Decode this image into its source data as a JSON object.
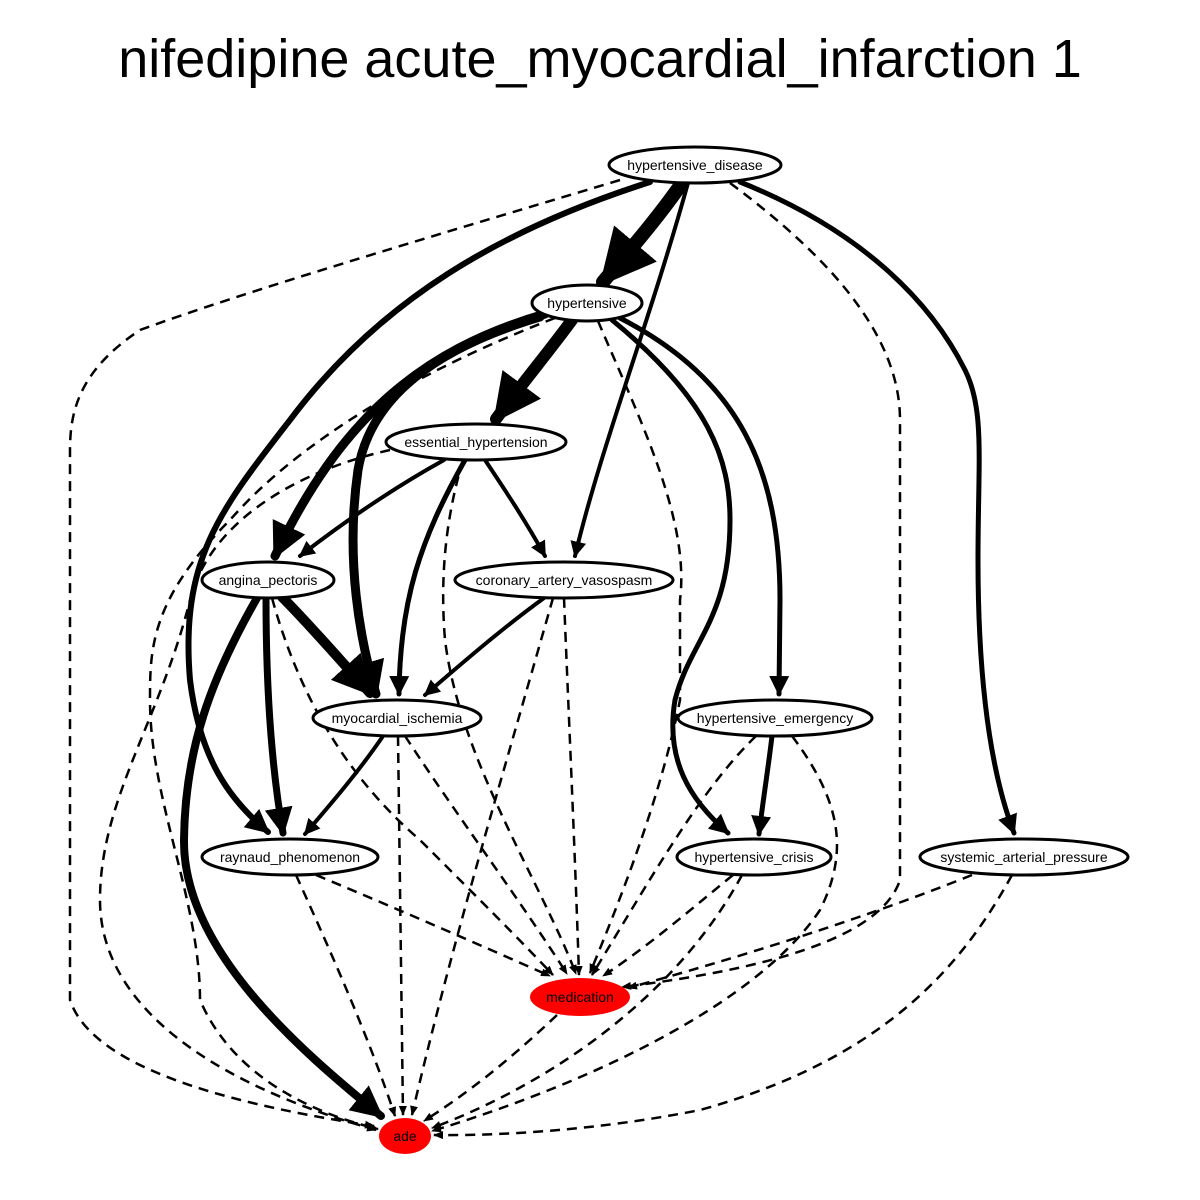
{
  "title": "nifedipine acute_myocardial_infarction 1",
  "colors": {
    "highlight": "#ff0000",
    "node_fill": "#ffffff",
    "stroke": "#000000"
  },
  "nodes": [
    {
      "id": "hypertensive_disease",
      "label": "hypertensive_disease",
      "highlight": false
    },
    {
      "id": "hypertensive",
      "label": "hypertensive",
      "highlight": false
    },
    {
      "id": "essential_hypertension",
      "label": "essential_hypertension",
      "highlight": false
    },
    {
      "id": "angina_pectoris",
      "label": "angina_pectoris",
      "highlight": false
    },
    {
      "id": "coronary_artery_vasospasm",
      "label": "coronary_artery_vasospasm",
      "highlight": false
    },
    {
      "id": "myocardial_ischemia",
      "label": "myocardial_ischemia",
      "highlight": false
    },
    {
      "id": "hypertensive_emergency",
      "label": "hypertensive_emergency",
      "highlight": false
    },
    {
      "id": "raynaud_phenomenon",
      "label": "raynaud_phenomenon",
      "highlight": false
    },
    {
      "id": "hypertensive_crisis",
      "label": "hypertensive_crisis",
      "highlight": false
    },
    {
      "id": "systemic_arterial_pressure",
      "label": "systemic_arterial_pressure",
      "highlight": false
    },
    {
      "id": "medication",
      "label": "medication",
      "highlight": true
    },
    {
      "id": "ade",
      "label": "ade",
      "highlight": true
    }
  ],
  "edges": [
    {
      "from": "hypertensive_disease",
      "to": "hypertensive",
      "style": "solid",
      "weight": 14
    },
    {
      "from": "hypertensive_disease",
      "to": "coronary_artery_vasospasm",
      "style": "solid",
      "weight": 4
    },
    {
      "from": "hypertensive_disease",
      "to": "raynaud_phenomenon",
      "style": "solid",
      "weight": 6
    },
    {
      "from": "hypertensive_disease",
      "to": "systemic_arterial_pressure",
      "style": "solid",
      "weight": 5
    },
    {
      "from": "hypertensive_disease",
      "to": "ade",
      "style": "dashed",
      "weight": 2.5
    },
    {
      "from": "hypertensive_disease",
      "to": "medication",
      "style": "dashed",
      "weight": 2.5
    },
    {
      "from": "hypertensive",
      "to": "essential_hypertension",
      "style": "solid",
      "weight": 12
    },
    {
      "from": "hypertensive",
      "to": "angina_pectoris",
      "style": "solid",
      "weight": 9
    },
    {
      "from": "hypertensive",
      "to": "myocardial_ischemia",
      "style": "solid",
      "weight": 9
    },
    {
      "from": "hypertensive",
      "to": "hypertensive_emergency",
      "style": "solid",
      "weight": 5
    },
    {
      "from": "hypertensive",
      "to": "hypertensive_crisis",
      "style": "solid",
      "weight": 5
    },
    {
      "from": "hypertensive",
      "to": "medication",
      "style": "dashed",
      "weight": 2.5
    },
    {
      "from": "hypertensive",
      "to": "ade",
      "style": "dashed",
      "weight": 2.5
    },
    {
      "from": "essential_hypertension",
      "to": "angina_pectoris",
      "style": "solid",
      "weight": 4
    },
    {
      "from": "essential_hypertension",
      "to": "coronary_artery_vasospasm",
      "style": "solid",
      "weight": 4
    },
    {
      "from": "essential_hypertension",
      "to": "myocardial_ischemia",
      "style": "solid",
      "weight": 5
    },
    {
      "from": "essential_hypertension",
      "to": "medication",
      "style": "dashed",
      "weight": 2.5
    },
    {
      "from": "essential_hypertension",
      "to": "ade",
      "style": "dashed",
      "weight": 2.5
    },
    {
      "from": "angina_pectoris",
      "to": "myocardial_ischemia",
      "style": "solid",
      "weight": 10
    },
    {
      "from": "angina_pectoris",
      "to": "raynaud_phenomenon",
      "style": "solid",
      "weight": 7
    },
    {
      "from": "angina_pectoris",
      "to": "ade",
      "style": "solid",
      "weight": 8
    },
    {
      "from": "angina_pectoris",
      "to": "medication",
      "style": "dashed",
      "weight": 2.5
    },
    {
      "from": "coronary_artery_vasospasm",
      "to": "myocardial_ischemia",
      "style": "solid",
      "weight": 4
    },
    {
      "from": "coronary_artery_vasospasm",
      "to": "medication",
      "style": "dashed",
      "weight": 2.5
    },
    {
      "from": "coronary_artery_vasospasm",
      "to": "ade",
      "style": "dashed",
      "weight": 2.5
    },
    {
      "from": "myocardial_ischemia",
      "to": "raynaud_phenomenon",
      "style": "solid",
      "weight": 4
    },
    {
      "from": "myocardial_ischemia",
      "to": "medication",
      "style": "dashed",
      "weight": 2.5
    },
    {
      "from": "myocardial_ischemia",
      "to": "ade",
      "style": "dashed",
      "weight": 2.5
    },
    {
      "from": "hypertensive_emergency",
      "to": "hypertensive_crisis",
      "style": "solid",
      "weight": 5
    },
    {
      "from": "hypertensive_emergency",
      "to": "medication",
      "style": "dashed",
      "weight": 2.5
    },
    {
      "from": "hypertensive_emergency",
      "to": "ade",
      "style": "dashed",
      "weight": 2.5
    },
    {
      "from": "raynaud_phenomenon",
      "to": "medication",
      "style": "dashed",
      "weight": 2.5
    },
    {
      "from": "raynaud_phenomenon",
      "to": "ade",
      "style": "dashed",
      "weight": 2.5
    },
    {
      "from": "hypertensive_crisis",
      "to": "medication",
      "style": "dashed",
      "weight": 2.5
    },
    {
      "from": "hypertensive_crisis",
      "to": "ade",
      "style": "dashed",
      "weight": 2.5
    },
    {
      "from": "systemic_arterial_pressure",
      "to": "medication",
      "style": "dashed",
      "weight": 2.5
    },
    {
      "from": "systemic_arterial_pressure",
      "to": "ade",
      "style": "dashed",
      "weight": 2.5
    },
    {
      "from": "medication",
      "to": "ade",
      "style": "dashed",
      "weight": 2.5
    }
  ]
}
